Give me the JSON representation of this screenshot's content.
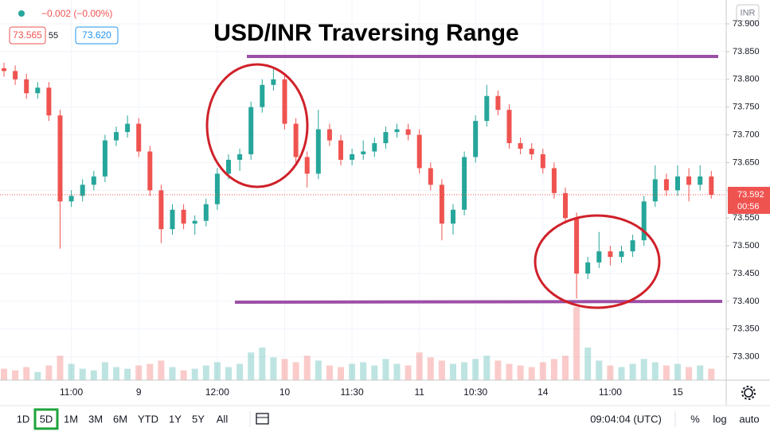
{
  "chart_data": {
    "type": "candlestick",
    "title": "USD/INR Traversing Range",
    "change": "−0.002 (−0.00%)",
    "bid": 73.565,
    "spread": 55,
    "ask": {
      "value": 73.62,
      "label": "73.620"
    },
    "currency": "INR",
    "last_price": 73.592,
    "countdown": "00:56",
    "up_color": "#26a69a",
    "down_color": "#ef5350",
    "grid": true,
    "categories": [
      null,
      null,
      null,
      null,
      null,
      null,
      "11:00",
      null,
      null,
      null,
      null,
      null,
      "9",
      null,
      null,
      null,
      null,
      null,
      null,
      "12:00",
      null,
      null,
      null,
      null,
      null,
      "10",
      null,
      null,
      null,
      null,
      null,
      "11:30",
      null,
      null,
      null,
      null,
      null,
      "11",
      null,
      null,
      null,
      null,
      "10:30",
      null,
      null,
      null,
      null,
      null,
      "14",
      null,
      null,
      null,
      null,
      null,
      "11:00",
      null,
      null,
      null,
      null,
      null,
      "15",
      null,
      null,
      null
    ],
    "open": [
      73.82,
      73.815,
      73.8,
      73.775,
      73.785,
      73.735,
      73.58,
      73.59,
      73.61,
      73.625,
      73.69,
      73.705,
      73.72,
      73.67,
      73.6,
      73.53,
      73.565,
      73.54,
      73.545,
      73.575,
      73.63,
      73.655,
      73.665,
      73.75,
      73.79,
      73.8,
      73.72,
      73.66,
      73.63,
      73.71,
      73.69,
      73.655,
      73.665,
      73.67,
      73.685,
      73.705,
      73.71,
      73.7,
      73.64,
      73.61,
      73.54,
      73.565,
      73.66,
      73.725,
      73.77,
      73.745,
      73.685,
      73.675,
      73.665,
      73.64,
      73.595,
      73.55,
      73.45,
      73.47,
      73.49,
      73.48,
      73.49,
      73.51,
      73.58,
      73.62,
      73.6,
      73.625,
      73.61,
      73.625
    ],
    "high": [
      73.83,
      73.825,
      73.81,
      73.795,
      73.795,
      73.745,
      73.6,
      73.62,
      73.635,
      73.7,
      73.715,
      73.735,
      73.73,
      73.68,
      73.61,
      73.575,
      73.575,
      73.555,
      73.585,
      73.64,
      73.665,
      73.675,
      73.76,
      73.8,
      73.82,
      73.81,
      73.73,
      73.67,
      73.745,
      73.72,
      73.7,
      73.675,
      73.69,
      73.695,
      73.715,
      73.72,
      73.72,
      73.71,
      73.65,
      73.62,
      73.575,
      73.67,
      73.735,
      73.79,
      73.78,
      73.755,
      73.695,
      73.685,
      73.675,
      73.65,
      73.605,
      73.56,
      73.48,
      73.525,
      73.5,
      73.5,
      73.52,
      73.59,
      73.645,
      73.63,
      73.645,
      73.64,
      73.645,
      73.635
    ],
    "low": [
      73.805,
      73.79,
      73.765,
      73.765,
      73.725,
      73.495,
      73.57,
      73.58,
      73.6,
      73.615,
      73.68,
      73.695,
      73.66,
      73.59,
      73.505,
      73.52,
      73.53,
      73.52,
      73.535,
      73.565,
      73.62,
      73.635,
      73.655,
      73.74,
      73.78,
      73.71,
      73.65,
      73.605,
      73.62,
      73.68,
      73.645,
      73.645,
      73.655,
      73.66,
      73.675,
      73.695,
      73.69,
      73.63,
      73.6,
      73.51,
      73.52,
      73.555,
      73.65,
      73.715,
      73.735,
      73.675,
      73.665,
      73.655,
      73.63,
      73.585,
      73.54,
      73.405,
      73.44,
      73.46,
      73.465,
      73.47,
      73.48,
      73.5,
      73.57,
      73.59,
      73.59,
      73.58,
      73.6,
      73.585
    ],
    "close": [
      73.815,
      73.8,
      73.775,
      73.785,
      73.735,
      73.58,
      73.59,
      73.61,
      73.625,
      73.69,
      73.705,
      73.72,
      73.67,
      73.6,
      73.53,
      73.565,
      73.54,
      73.545,
      73.575,
      73.63,
      73.655,
      73.665,
      73.75,
      73.79,
      73.8,
      73.72,
      73.66,
      73.63,
      73.71,
      73.69,
      73.655,
      73.665,
      73.67,
      73.685,
      73.705,
      73.71,
      73.7,
      73.64,
      73.61,
      73.54,
      73.565,
      73.66,
      73.725,
      73.77,
      73.745,
      73.685,
      73.675,
      73.665,
      73.64,
      73.595,
      73.55,
      73.45,
      73.47,
      73.49,
      73.48,
      73.49,
      73.51,
      73.58,
      73.62,
      73.6,
      73.625,
      73.61,
      73.625,
      73.592
    ],
    "volume": [
      14,
      12,
      16,
      10,
      18,
      30,
      20,
      14,
      12,
      22,
      16,
      14,
      18,
      20,
      24,
      16,
      12,
      14,
      18,
      22,
      16,
      20,
      34,
      40,
      28,
      26,
      22,
      30,
      24,
      18,
      16,
      20,
      22,
      18,
      26,
      20,
      18,
      34,
      28,
      24,
      20,
      22,
      26,
      30,
      24,
      20,
      18,
      16,
      22,
      26,
      30,
      90,
      40,
      24,
      18,
      16,
      20,
      26,
      22,
      18,
      20,
      16,
      18,
      14
    ],
    "ylim": [
      73.258,
      73.943
    ],
    "yticks": [
      {
        "value": 73.3,
        "label": "73.300"
      },
      {
        "value": 73.35,
        "label": "73.350"
      },
      {
        "value": 73.4,
        "label": "73.400"
      },
      {
        "value": 73.45,
        "label": "73.450"
      },
      {
        "value": 73.5,
        "label": "73.500"
      },
      {
        "value": 73.55,
        "label": "73.550"
      },
      {
        "value": 73.6,
        "label": "73.600"
      },
      {
        "value": 73.65,
        "label": "73.650"
      },
      {
        "value": 73.7,
        "label": "73.700"
      },
      {
        "value": 73.75,
        "label": "73.750"
      },
      {
        "value": 73.8,
        "label": "73.800"
      },
      {
        "value": 73.85,
        "label": "73.850"
      },
      {
        "value": 73.9,
        "label": "73.900"
      }
    ]
  },
  "toolbar": {
    "ranges": [
      "1D",
      "5D",
      "1M",
      "3M",
      "6M",
      "YTD",
      "1Y",
      "5Y",
      "All"
    ],
    "selected": 1,
    "clock": "09:04:04 (UTC)",
    "options": [
      "%",
      "log",
      "auto"
    ]
  }
}
